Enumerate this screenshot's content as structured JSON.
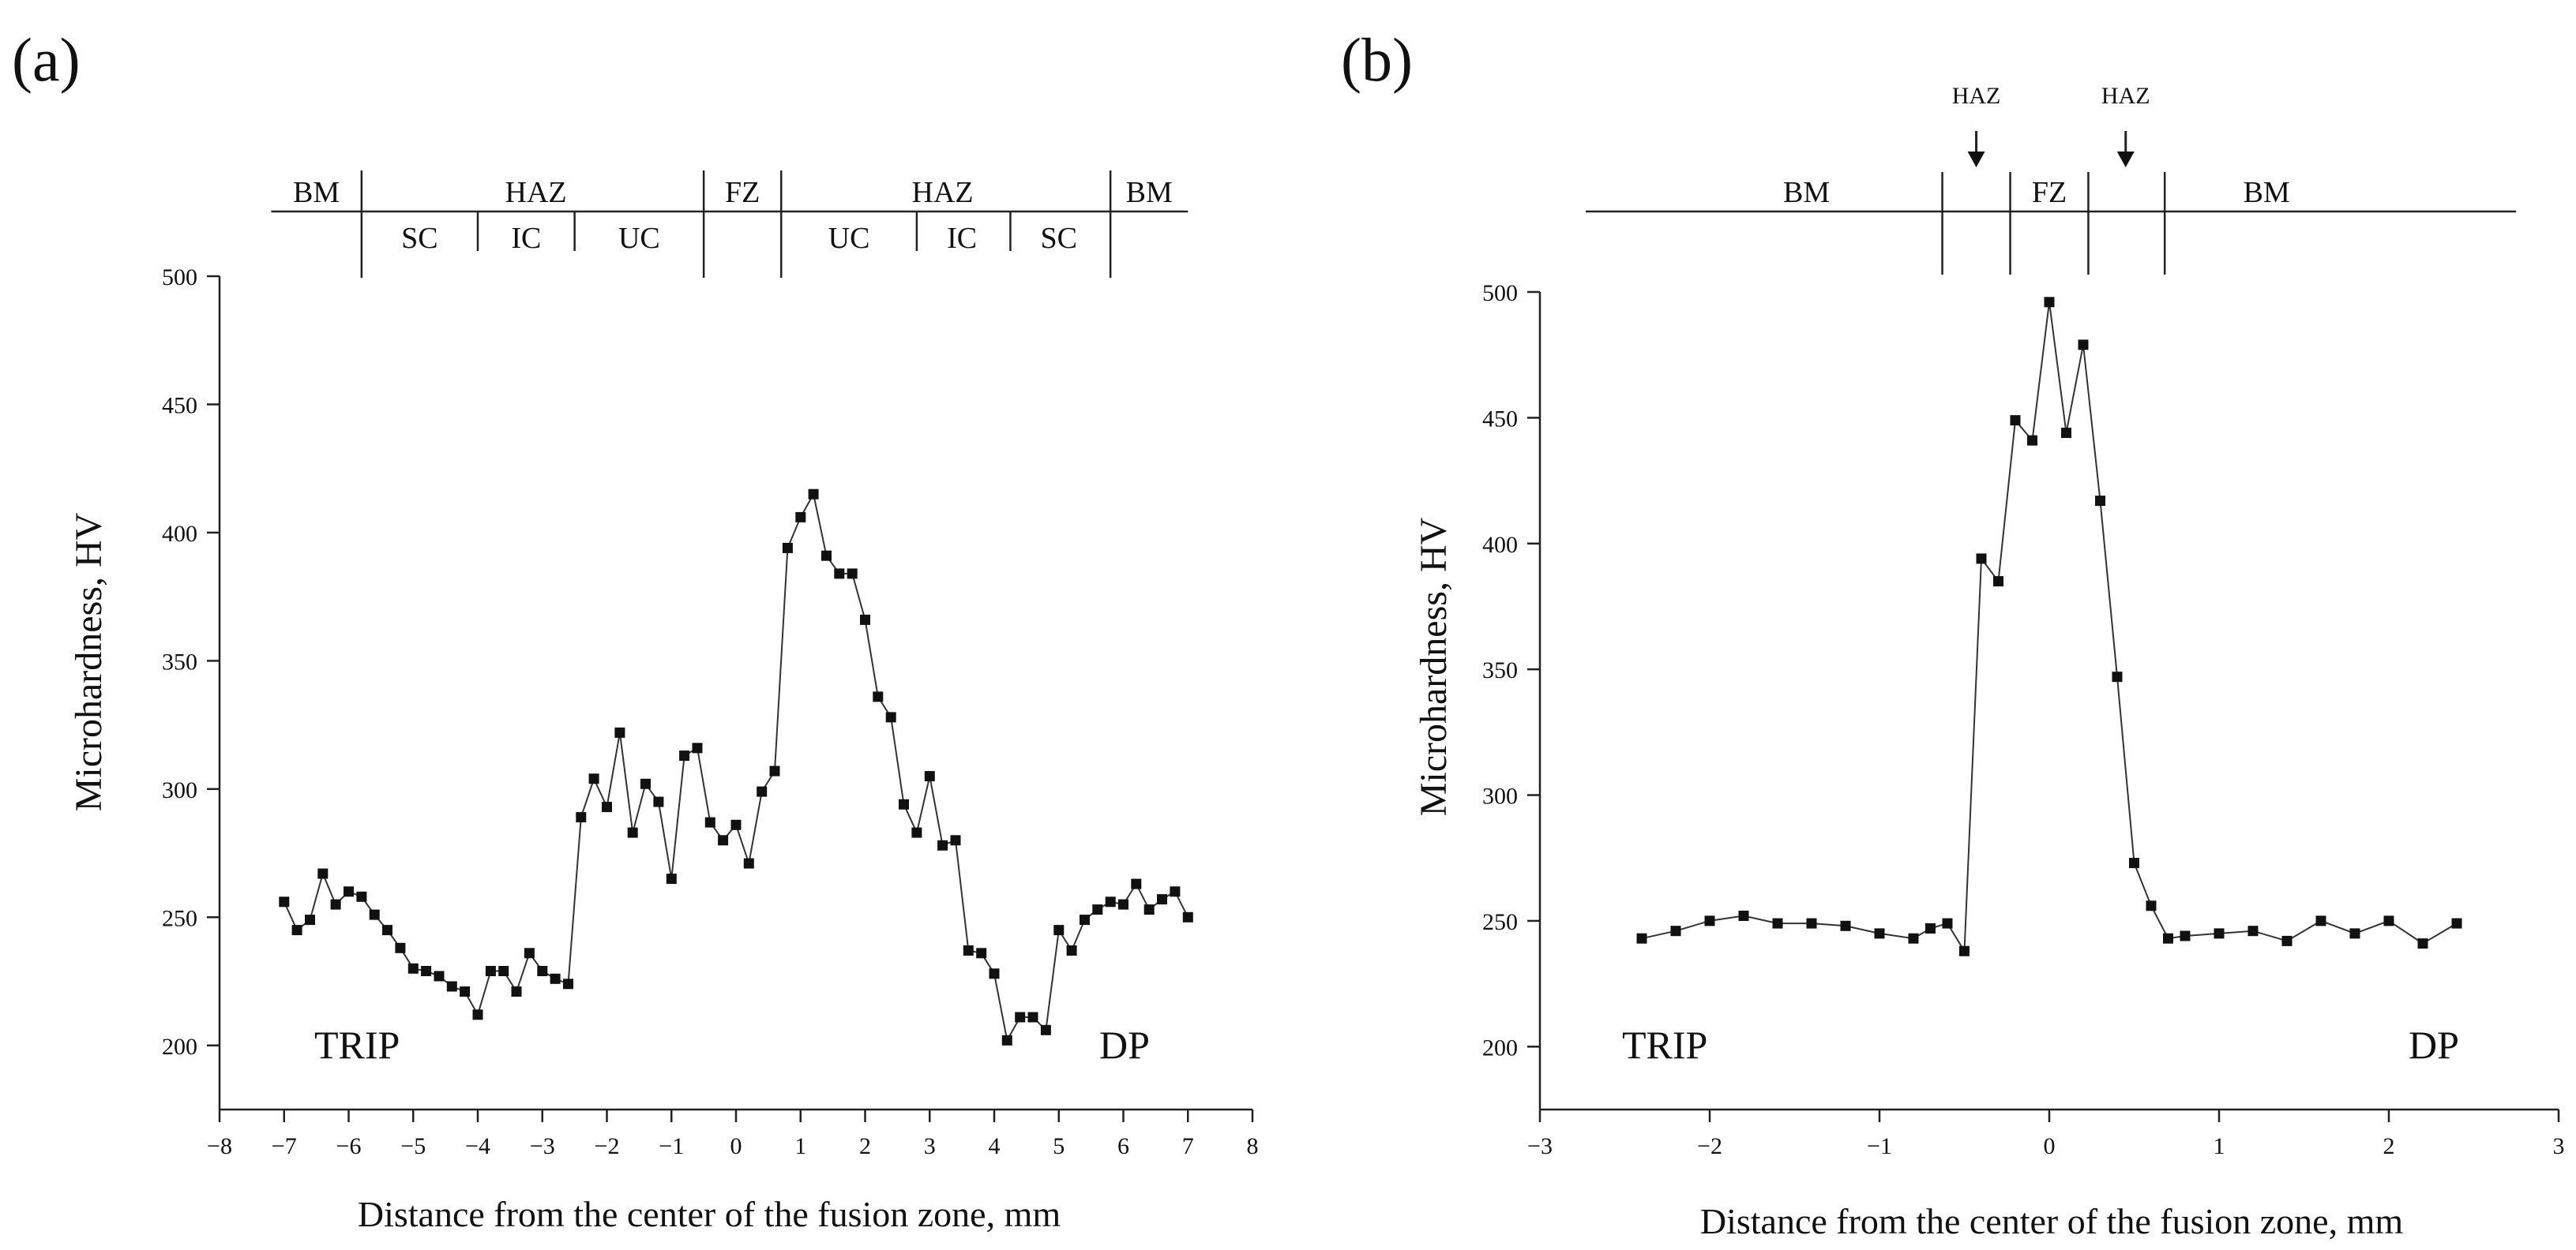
{
  "chart_data": [
    {
      "type": "line",
      "panel_label": "(a)",
      "title": "",
      "xlabel": "Distance from the center of the fusion zone, mm",
      "ylabel": "Microhardness, HV",
      "xlim": [
        -8,
        8
      ],
      "ylim": [
        175,
        500
      ],
      "xticks": [
        -8,
        -7,
        -6,
        -5,
        -4,
        -3,
        -2,
        -1,
        0,
        1,
        2,
        3,
        4,
        5,
        6,
        7,
        8
      ],
      "yticks": [
        200,
        250,
        300,
        350,
        400,
        450,
        500
      ],
      "xtick_labels": [
        "−8",
        "−7",
        "−6",
        "−5",
        "−4",
        "−3",
        "−2",
        "−1",
        "0",
        "1",
        "2",
        "3",
        "4",
        "5",
        "6",
        "7",
        "8"
      ],
      "ytick_labels": [
        "200",
        "250",
        "300",
        "350",
        "400",
        "450",
        "500"
      ],
      "annotations": {
        "left": "TRIP",
        "right": "DP"
      },
      "zones": {
        "extent": [
          -7.2,
          7.0
        ],
        "main_dividers": [
          -5.8,
          -0.5,
          0.7,
          5.8
        ],
        "sub_dividers": [
          -4.0,
          -2.5,
          2.8,
          4.25
        ],
        "top_labels": [
          {
            "text": "BM",
            "x": -6.5
          },
          {
            "text": "HAZ",
            "x": -3.1
          },
          {
            "text": "FZ",
            "x": 0.1
          },
          {
            "text": "HAZ",
            "x": 3.2
          },
          {
            "text": "BM",
            "x": 6.4
          }
        ],
        "sub_labels": [
          {
            "text": "SC",
            "x": -4.9
          },
          {
            "text": "IC",
            "x": -3.25
          },
          {
            "text": "UC",
            "x": -1.5
          },
          {
            "text": "UC",
            "x": 1.75
          },
          {
            "text": "IC",
            "x": 3.5
          },
          {
            "text": "SC",
            "x": 5.0
          }
        ]
      },
      "series": [
        {
          "name": "Microhardness",
          "x": [
            -7.0,
            -6.8,
            -6.6,
            -6.4,
            -6.2,
            -6.0,
            -5.8,
            -5.6,
            -5.4,
            -5.2,
            -5.0,
            -4.8,
            -4.6,
            -4.4,
            -4.2,
            -4.0,
            -3.8,
            -3.6,
            -3.4,
            -3.2,
            -3.0,
            -2.8,
            -2.6,
            -2.4,
            -2.2,
            -2.0,
            -1.8,
            -1.6,
            -1.4,
            -1.2,
            -1.0,
            -0.8,
            -0.6,
            -0.4,
            -0.2,
            0.0,
            0.2,
            0.4,
            0.6,
            0.8,
            1.0,
            1.2,
            1.4,
            1.6,
            1.8,
            2.0,
            2.2,
            2.4,
            2.6,
            2.8,
            3.0,
            3.2,
            3.4,
            3.6,
            3.8,
            4.0,
            4.2,
            4.4,
            4.6,
            4.8,
            5.0,
            5.2,
            5.4,
            5.6,
            5.8,
            6.0,
            6.2,
            6.4,
            6.6,
            6.8,
            7.0
          ],
          "y": [
            256,
            245,
            249,
            267,
            255,
            260,
            258,
            251,
            245,
            238,
            230,
            229,
            227,
            223,
            221,
            212,
            229,
            229,
            221,
            236,
            229,
            226,
            224,
            289,
            304,
            293,
            322,
            283,
            302,
            295,
            265,
            313,
            316,
            287,
            280,
            286,
            271,
            299,
            307,
            394,
            406,
            415,
            391,
            384,
            384,
            366,
            336,
            328,
            294,
            283,
            305,
            278,
            280,
            237,
            236,
            228,
            202,
            211,
            211,
            206,
            245,
            237,
            249,
            253,
            256,
            255,
            263,
            253,
            257,
            260,
            250
          ]
        }
      ]
    },
    {
      "type": "line",
      "panel_label": "(b)",
      "title": "",
      "xlabel": "Distance from the center of the fusion zone, mm",
      "ylabel": "Microhardness, HV",
      "xlim": [
        -3,
        3
      ],
      "ylim": [
        175,
        500
      ],
      "xticks": [
        -3,
        -2,
        -1,
        0,
        1,
        2,
        3
      ],
      "yticks": [
        200,
        250,
        300,
        350,
        400,
        450,
        500
      ],
      "xtick_labels": [
        "−3",
        "−2",
        "−1",
        "0",
        "1",
        "2",
        "3"
      ],
      "ytick_labels": [
        "200",
        "250",
        "300",
        "350",
        "400",
        "450",
        "500"
      ],
      "annotations": {
        "left": "TRIP",
        "right": "DP"
      },
      "zones": {
        "extent": [
          -2.73,
          2.75
        ],
        "dividers": [
          -0.63,
          -0.23,
          0.23,
          0.68
        ],
        "top_labels": [
          {
            "text": "BM",
            "x": -1.43
          },
          {
            "text": "FZ",
            "x": 0.0
          },
          {
            "text": "BM",
            "x": 1.28
          }
        ],
        "arrows": [
          {
            "text": "HAZ",
            "x": -0.43
          },
          {
            "text": "HAZ",
            "x": 0.45
          }
        ]
      },
      "series": [
        {
          "name": "Microhardness",
          "x": [
            -2.4,
            -2.2,
            -2.0,
            -1.8,
            -1.6,
            -1.4,
            -1.2,
            -1.0,
            -0.8,
            -0.7,
            -0.6,
            -0.5,
            -0.4,
            -0.3,
            -0.2,
            -0.1,
            0.0,
            0.1,
            0.2,
            0.3,
            0.4,
            0.5,
            0.6,
            0.7,
            0.8,
            1.0,
            1.2,
            1.4,
            1.6,
            1.8,
            2.0,
            2.2,
            2.4
          ],
          "y": [
            243,
            246,
            250,
            252,
            249,
            249,
            248,
            245,
            243,
            247,
            249,
            238,
            394,
            385,
            449,
            441,
            496,
            444,
            479,
            417,
            347,
            273,
            256,
            243,
            244,
            245,
            246,
            242,
            250,
            245,
            250,
            241,
            249
          ]
        }
      ]
    }
  ]
}
